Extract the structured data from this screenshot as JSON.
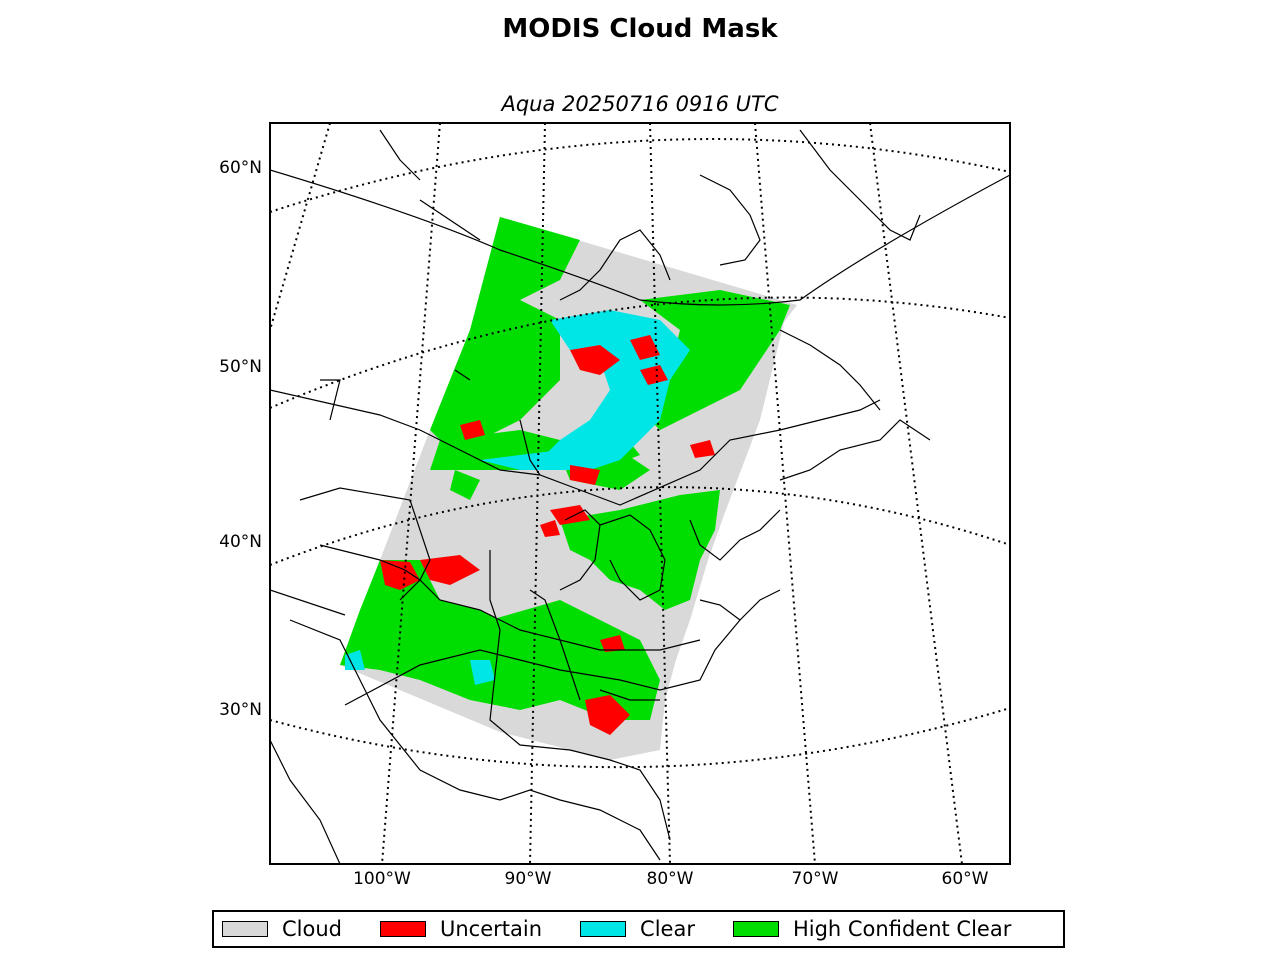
{
  "header": {
    "title": "MODIS Cloud Mask",
    "subtitle": "Aqua 20250716 0916 UTC"
  },
  "map": {
    "projection": "lambert-conformal",
    "lat_labels": [
      {
        "value": 60,
        "label": "60°N"
      },
      {
        "value": 50,
        "label": "50°N"
      },
      {
        "value": 40,
        "label": "40°N"
      },
      {
        "value": 30,
        "label": "30°N"
      }
    ],
    "lon_labels": [
      {
        "value": -100,
        "label": "100°W"
      },
      {
        "value": -90,
        "label": "90°W"
      },
      {
        "value": -80,
        "label": "80°W"
      },
      {
        "value": -70,
        "label": "70°W"
      },
      {
        "value": -60,
        "label": "60°W"
      }
    ]
  },
  "legend": {
    "items": [
      {
        "label": "Cloud",
        "color": "#d9d9d9"
      },
      {
        "label": "Uncertain",
        "color": "#ff0000"
      },
      {
        "label": "Clear",
        "color": "#00e6e6"
      },
      {
        "label": "High Confident Clear",
        "color": "#00dd00"
      }
    ]
  },
  "colors": {
    "cloud": "#d9d9d9",
    "uncertain": "#ff0000",
    "clear": "#00e6e6",
    "high_confident_clear": "#00dd00",
    "graticule": "#000000",
    "coastline": "#000000"
  }
}
